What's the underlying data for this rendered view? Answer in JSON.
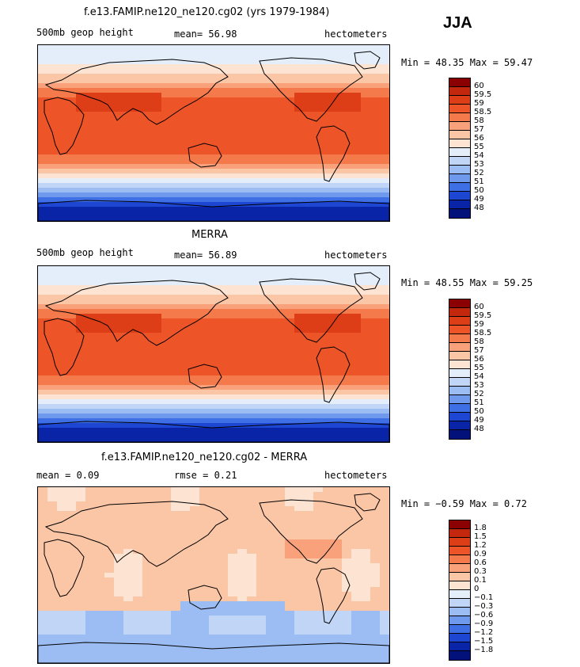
{
  "season": "JJA",
  "panels": [
    {
      "title": "f.e13.FAMIP.ne120_ne120.cg02 (yrs 1979-1984)",
      "left_label": "500mb geop height",
      "mid_label": "mean=  56.98",
      "right_label": "hectometers",
      "min_max": "Min =  48.35 Max =  59.47",
      "colorbar": {
        "labels": [
          "60",
          "59.5",
          "59",
          "58.5",
          "58",
          "57",
          "56",
          "55",
          "54",
          "53",
          "52",
          "51",
          "50",
          "49",
          "48"
        ],
        "colors": [
          "#8b0000",
          "#c3280f",
          "#de3e17",
          "#ed5528",
          "#f47a4b",
          "#f8a17a",
          "#fbc6a5",
          "#fde4d2",
          "#e4eefb",
          "#c1d6f7",
          "#9cbdf3",
          "#6f99ed",
          "#3f6fe4",
          "#1d47d3",
          "#0a24a8",
          "#02127a"
        ]
      },
      "field": "height"
    },
    {
      "title": "MERRA",
      "left_label": "500mb geop height",
      "mid_label": "mean=  56.89",
      "right_label": "hectometers",
      "min_max": "Min =  48.55 Max =  59.25",
      "colorbar": {
        "labels": [
          "60",
          "59.5",
          "59",
          "58.5",
          "58",
          "57",
          "56",
          "55",
          "54",
          "53",
          "52",
          "51",
          "50",
          "49",
          "48"
        ],
        "colors": [
          "#8b0000",
          "#c3280f",
          "#de3e17",
          "#ed5528",
          "#f47a4b",
          "#f8a17a",
          "#fbc6a5",
          "#fde4d2",
          "#e4eefb",
          "#c1d6f7",
          "#9cbdf3",
          "#6f99ed",
          "#3f6fe4",
          "#1d47d3",
          "#0a24a8",
          "#02127a"
        ]
      },
      "field": "height"
    },
    {
      "title": "f.e13.FAMIP.ne120_ne120.cg02 - MERRA",
      "left_label": "mean =   0.09",
      "mid_label": "rmse =   0.21",
      "right_label": "hectometers",
      "min_max": "Min =  −0.59 Max =   0.72",
      "colorbar": {
        "labels": [
          "1.8",
          "1.5",
          "1.2",
          "0.9",
          "0.6",
          "0.3",
          "0.1",
          "0",
          "−0.1",
          "−0.3",
          "−0.6",
          "−0.9",
          "−1.2",
          "−1.5",
          "−1.8"
        ],
        "colors": [
          "#8b0000",
          "#c3280f",
          "#de3e17",
          "#ed5528",
          "#f47a4b",
          "#f8a17a",
          "#fbc6a5",
          "#fde4d2",
          "#e4eefb",
          "#c1d6f7",
          "#9cbdf3",
          "#6f99ed",
          "#3f6fe4",
          "#1d47d3",
          "#0a24a8",
          "#02127a"
        ]
      },
      "field": "diff"
    }
  ]
}
